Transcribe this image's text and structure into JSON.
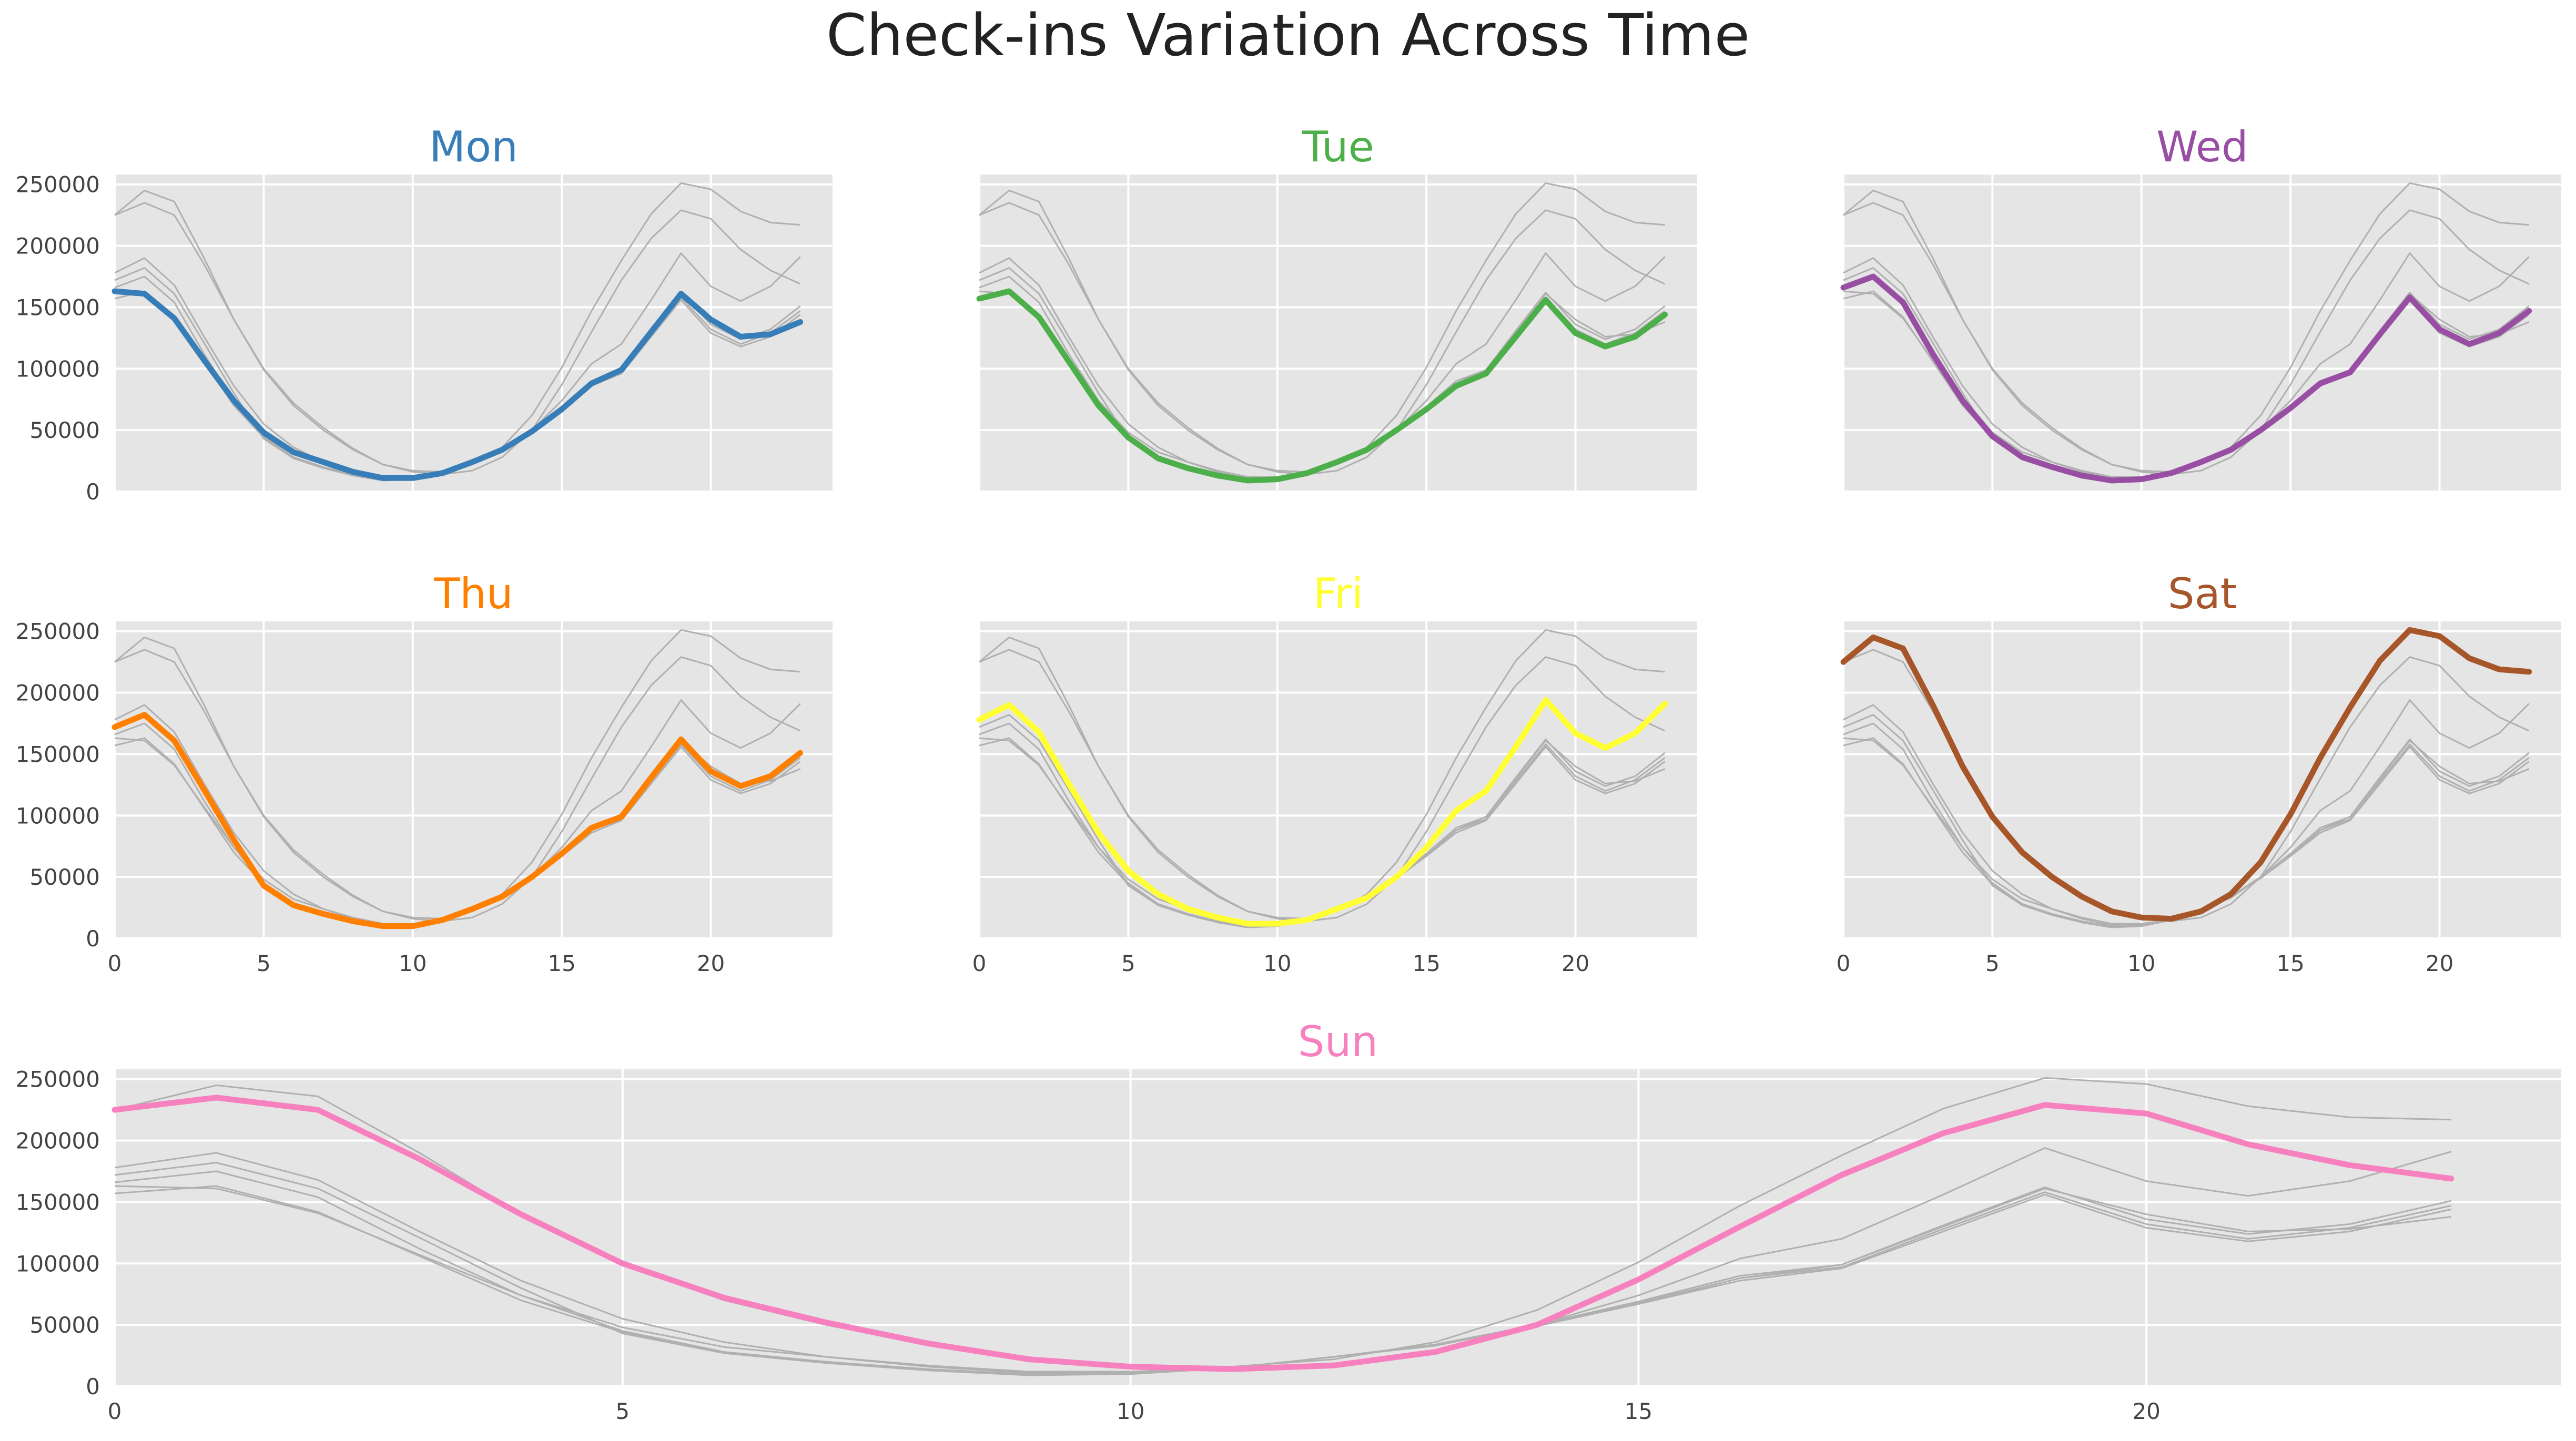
{
  "chart_data": {
    "type": "line",
    "title": "Check-ins Variation Across Time",
    "xlabel": "",
    "ylabel": "",
    "xlim": [
      0,
      23
    ],
    "ylim": [
      0,
      258000
    ],
    "grid": true,
    "x": [
      0,
      1,
      2,
      3,
      4,
      5,
      6,
      7,
      8,
      9,
      10,
      11,
      12,
      13,
      14,
      15,
      16,
      17,
      18,
      19,
      20,
      21,
      22,
      23
    ],
    "x_ticks": [
      0,
      5,
      10,
      15,
      20
    ],
    "y_ticks": [
      0,
      50000,
      100000,
      150000,
      200000,
      250000
    ],
    "background_series_color": "#b0b0b0",
    "series": [
      {
        "name": "Mon",
        "color": "#377eb8",
        "values": [
          163000,
          161000,
          141000,
          107000,
          74000,
          48000,
          32000,
          24000,
          16000,
          11000,
          11000,
          15000,
          24000,
          34000,
          49000,
          67000,
          88000,
          99000,
          130000,
          161000,
          140000,
          126000,
          128000,
          138000
        ]
      },
      {
        "name": "Tue",
        "color": "#4daf4a",
        "values": [
          157000,
          163000,
          142000,
          106000,
          70000,
          44000,
          27000,
          19000,
          13000,
          9000,
          10000,
          15000,
          24000,
          34000,
          50000,
          67000,
          86000,
          96000,
          126000,
          156000,
          129000,
          118000,
          126000,
          144000
        ]
      },
      {
        "name": "Wed",
        "color": "#984ea3",
        "values": [
          166000,
          175000,
          154000,
          112000,
          74000,
          45000,
          28000,
          20000,
          13000,
          9000,
          10000,
          15000,
          24000,
          34000,
          50000,
          68000,
          88000,
          97000,
          128000,
          158000,
          132000,
          120000,
          129000,
          147000
        ]
      },
      {
        "name": "Thu",
        "color": "#ff7f00",
        "values": [
          172000,
          182000,
          161000,
          121000,
          80000,
          43000,
          27000,
          20000,
          14000,
          10000,
          10000,
          15000,
          24000,
          34000,
          50000,
          69000,
          90000,
          99000,
          131000,
          162000,
          136000,
          124000,
          132000,
          151000
        ]
      },
      {
        "name": "Fri",
        "color": "#ffff33",
        "values": [
          178000,
          190000,
          168000,
          126000,
          86000,
          55000,
          36000,
          24000,
          17000,
          12000,
          12000,
          15000,
          24000,
          33000,
          50000,
          74000,
          104000,
          120000,
          156000,
          194000,
          167000,
          155000,
          167000,
          191000
        ]
      },
      {
        "name": "Sat",
        "color": "#a65628",
        "values": [
          225000,
          245000,
          236000,
          190000,
          140000,
          99000,
          70000,
          50000,
          34000,
          22000,
          17000,
          16000,
          22000,
          36000,
          62000,
          101000,
          147000,
          188000,
          226000,
          251000,
          246000,
          228000,
          219000,
          217000
        ]
      },
      {
        "name": "Sun",
        "color": "#f781bf",
        "values": [
          225000,
          235000,
          225000,
          185000,
          140000,
          100000,
          72000,
          52000,
          35000,
          22000,
          16000,
          14000,
          17000,
          28000,
          50000,
          87000,
          130000,
          172000,
          206000,
          229000,
          222000,
          197000,
          180000,
          169000
        ]
      }
    ]
  }
}
